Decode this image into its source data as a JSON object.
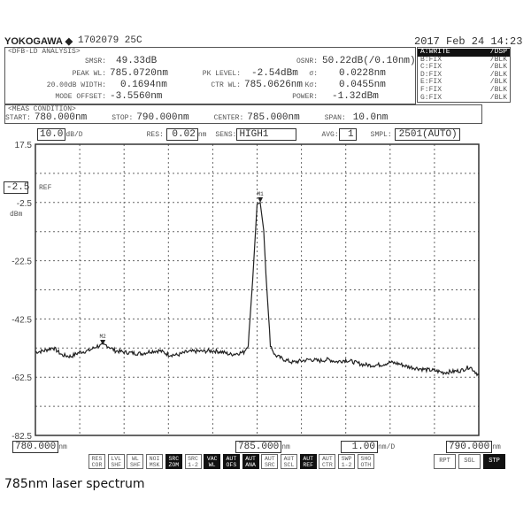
{
  "header": {
    "brand": "YOKOGAWA",
    "model": "1702079 25C",
    "datetime": "2017 Feb 24 14:23"
  },
  "analysis": {
    "title": "<DFB-LD ANALYSIS>",
    "smsr_label": "SMSR:",
    "smsr": "49.33dB",
    "peak_wl_label": "PEAK WL:",
    "peak_wl": "785.0720nm",
    "width_label": "20.00dB WIDTH:",
    "width": "0.1694nm",
    "mode_offset_label": "MODE OFFSET:",
    "mode_offset": "-3.5560nm",
    "pk_level_label": "PK LEVEL:",
    "pk_level": "-2.54dBm",
    "ctr_wl_label": "CTR WL:",
    "ctr_wl": "785.0626nm",
    "osnr_label": "OSNR:",
    "osnr": "50.22dB(/0.10nm)",
    "sigma_label": "σ:",
    "sigma": "0.0228nm",
    "ksigma_label": "Kσ:",
    "ksigma": "0.0455nm",
    "power_label": "POWER:",
    "power": "-1.32dBm"
  },
  "traces": [
    {
      "name": "A:WRITE",
      "mode": "/DSP",
      "selected": true
    },
    {
      "name": "B:FIX",
      "mode": "/BLK"
    },
    {
      "name": "C:FIX",
      "mode": "/BLK"
    },
    {
      "name": "D:FIX",
      "mode": "/BLK"
    },
    {
      "name": "E:FIX",
      "mode": "/BLK"
    },
    {
      "name": "F:FIX",
      "mode": "/BLK"
    },
    {
      "name": "G:FIX",
      "mode": "/BLK"
    }
  ],
  "meas": {
    "title": "<MEAS CONDITION>",
    "start_label": "START:",
    "start": "780.000nm",
    "stop_label": "STOP:",
    "stop": "790.000nm",
    "center_label": "CENTER:",
    "center": "785.000nm",
    "span_label": "SPAN:",
    "span": "10.0nm"
  },
  "settings": {
    "scale": "10.0",
    "scale_unit": "dB/D",
    "res_label": "RES:",
    "res": "0.02",
    "res_unit": "nm",
    "sens_label": "SENS:",
    "sens": "HIGH1",
    "avg_label": "AVG:",
    "avg": "1",
    "smpl_label": "SMPL:",
    "smpl": "2501(AUTO)"
  },
  "ref": {
    "value": "-2.5",
    "label": "REF",
    "unit": "dBm"
  },
  "xaxis": {
    "start": "780.000",
    "center": "785.000",
    "stop": "790.000",
    "unit": "nm",
    "div": "1.00",
    "div_unit": "nm/D"
  },
  "buttons": [
    {
      "l1": "RES",
      "l2": "COR",
      "on": false
    },
    {
      "l1": "LVL",
      "l2": "SHF",
      "on": false
    },
    {
      "l1": "WL",
      "l2": "SHF",
      "on": false
    },
    {
      "l1": "NOI",
      "l2": "MSK",
      "on": false
    },
    {
      "l1": "SRC",
      "l2": "ZOM",
      "on": true
    },
    {
      "l1": "SRC",
      "l2": "1-2",
      "on": false
    },
    {
      "l1": "VAC",
      "l2": "WL",
      "on": true
    },
    {
      "l1": "AUT",
      "l2": "OFS",
      "on": true
    },
    {
      "l1": "AUT",
      "l2": "ANA",
      "on": true
    },
    {
      "l1": "AUT",
      "l2": "SRC",
      "on": false
    },
    {
      "l1": "AUT",
      "l2": "SCL",
      "on": false
    },
    {
      "l1": "AUT",
      "l2": "REF",
      "on": true
    },
    {
      "l1": "AUT",
      "l2": "CTR",
      "on": false
    },
    {
      "l1": "SWP",
      "l2": "1-2",
      "on": false
    },
    {
      "l1": "SHO",
      "l2": "OTH",
      "on": false
    }
  ],
  "sweep_buttons": [
    {
      "label": "RPT",
      "on": false
    },
    {
      "label": "SGL",
      "on": false
    },
    {
      "label": "STP",
      "on": true
    }
  ],
  "caption": "785nm laser spectrum",
  "chart_data": {
    "type": "line",
    "xlim": [
      780,
      790
    ],
    "ylim": [
      -82.5,
      17.5
    ],
    "grid": true,
    "yunit": "dBm",
    "xunit": "nm",
    "yticks": [
      "17.5",
      "-2.5",
      "-22.5",
      "-42.5",
      "-62.5",
      "-82.5"
    ],
    "markers": [
      {
        "label": "M1",
        "x": 785.072,
        "y": -2.54
      },
      {
        "label": "M2",
        "x": 781.52,
        "y": -51.5
      }
    ],
    "x": [
      780.0,
      780.2,
      780.4,
      780.6,
      780.8,
      781.0,
      781.2,
      781.4,
      781.6,
      781.8,
      782.0,
      782.2,
      782.4,
      782.6,
      782.8,
      783.0,
      783.2,
      783.4,
      783.6,
      783.8,
      784.0,
      784.2,
      784.4,
      784.6,
      784.7,
      784.8,
      784.9,
      785.0,
      785.07,
      785.15,
      785.2,
      785.3,
      785.4,
      785.6,
      785.8,
      786.0,
      786.2,
      786.4,
      786.6,
      786.8,
      787.0,
      787.2,
      787.4,
      787.6,
      787.8,
      788.0,
      788.2,
      788.4,
      788.6,
      788.8,
      789.0,
      789.2,
      789.4,
      789.6,
      789.8,
      790.0
    ],
    "y": [
      -53.9,
      -53.4,
      -52.3,
      -54.9,
      -55.4,
      -53.9,
      -53.4,
      -51.8,
      -51.5,
      -53.4,
      -53.9,
      -54.2,
      -54.4,
      -53.6,
      -53.4,
      -54.7,
      -54.9,
      -53.9,
      -53.6,
      -53.6,
      -53.4,
      -53.8,
      -54.7,
      -54.2,
      -53.9,
      -51.3,
      -29.2,
      -3.1,
      -2.54,
      -12.1,
      -27.2,
      -51.3,
      -54.9,
      -56.4,
      -57.4,
      -56.9,
      -56.4,
      -56.9,
      -56.4,
      -57.2,
      -56.6,
      -57.4,
      -58.2,
      -58.4,
      -58.2,
      -57.4,
      -57.9,
      -58.9,
      -59.4,
      -59.9,
      -60.2,
      -60.9,
      -60.6,
      -60.2,
      -58.9,
      -61.8
    ]
  }
}
